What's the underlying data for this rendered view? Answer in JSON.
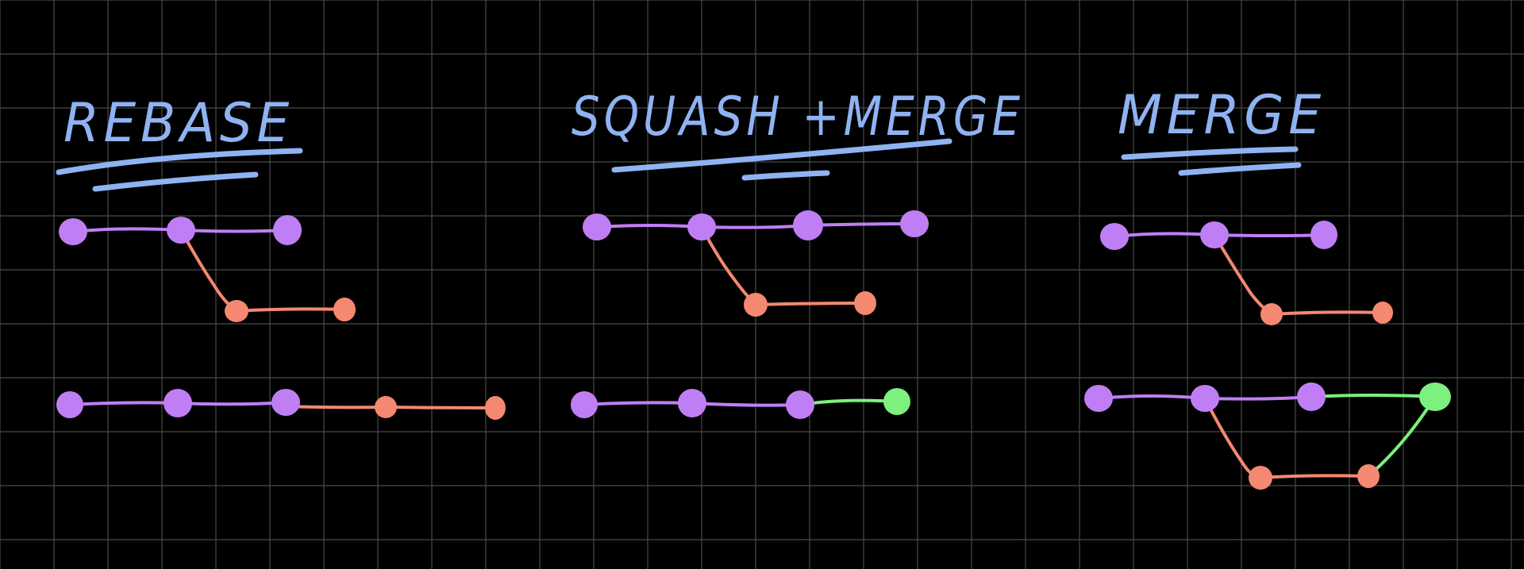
{
  "colors": {
    "background": "#000000",
    "grid": "#4a4a4a",
    "title": "#8fb3f2",
    "main_branch": "#c07ef5",
    "feature_branch": "#f58870",
    "merge_commit": "#7df07d"
  },
  "panels": [
    {
      "id": "rebase",
      "title": "REBASE"
    },
    {
      "id": "squash-merge",
      "title": "SQUASH +MERGE"
    },
    {
      "id": "merge",
      "title": "MERGE"
    }
  ]
}
